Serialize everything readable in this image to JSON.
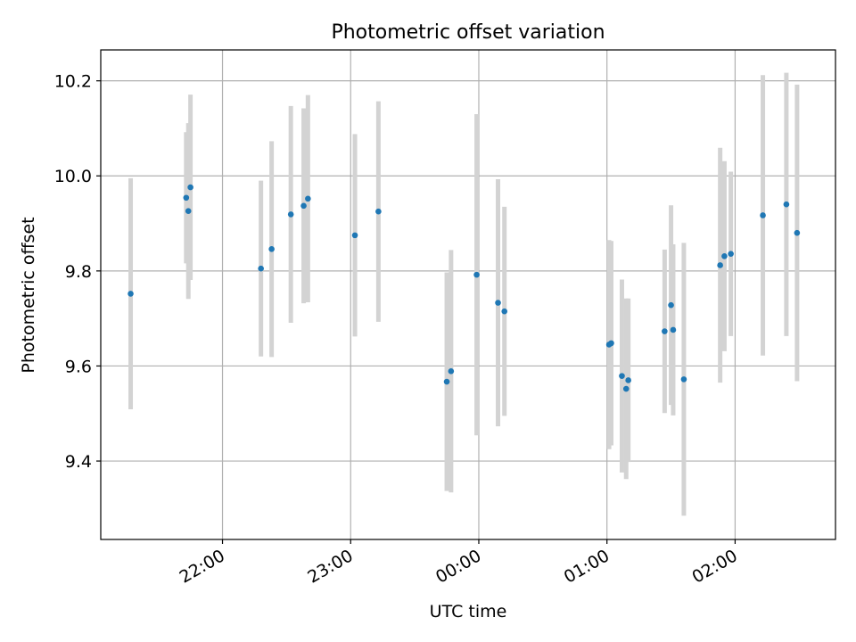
{
  "chart_data": {
    "type": "scatter",
    "title": "Photometric offset variation",
    "xlabel": "UTC time",
    "ylabel": "Photometric offset",
    "grid": true,
    "xlim": [
      "21:03",
      "02:47"
    ],
    "ylim": [
      9.235,
      10.265
    ],
    "xticks": [
      "22:00",
      "23:00",
      "00:00",
      "01:00",
      "02:00"
    ],
    "yticks": [
      9.4,
      9.6,
      9.8,
      10.0,
      10.2
    ],
    "ytick_labels": [
      "9.4",
      "9.6",
      "9.8",
      "10.0",
      "10.2"
    ],
    "point_color": "#1f77b4",
    "errorbar_color": "#d3d3d3",
    "points": [
      {
        "t": "21:17",
        "y": 9.752,
        "err": 0.243
      },
      {
        "t": "21:43",
        "y": 9.954,
        "err": 0.138
      },
      {
        "t": "21:44",
        "y": 9.926,
        "err": 0.185
      },
      {
        "t": "21:45",
        "y": 9.976,
        "err": 0.195
      },
      {
        "t": "22:18",
        "y": 9.805,
        "err": 0.185
      },
      {
        "t": "22:23",
        "y": 9.846,
        "err": 0.227
      },
      {
        "t": "22:32",
        "y": 9.919,
        "err": 0.228
      },
      {
        "t": "22:38",
        "y": 9.937,
        "err": 0.205
      },
      {
        "t": "22:40",
        "y": 9.952,
        "err": 0.218
      },
      {
        "t": "23:02",
        "y": 9.875,
        "err": 0.213
      },
      {
        "t": "23:13",
        "y": 9.925,
        "err": 0.232
      },
      {
        "t": "23:45",
        "y": 9.567,
        "err": 0.23
      },
      {
        "t": "23:47",
        "y": 9.589,
        "err": 0.255
      },
      {
        "t": "23:59",
        "y": 9.792,
        "err": 0.338
      },
      {
        "t": "00:09",
        "y": 9.733,
        "err": 0.26
      },
      {
        "t": "00:12",
        "y": 9.715,
        "err": 0.22
      },
      {
        "t": "01:01",
        "y": 9.645,
        "err": 0.22
      },
      {
        "t": "01:02",
        "y": 9.648,
        "err": 0.215
      },
      {
        "t": "01:07",
        "y": 9.579,
        "err": 0.203
      },
      {
        "t": "01:09",
        "y": 9.552,
        "err": 0.19
      },
      {
        "t": "01:10",
        "y": 9.57,
        "err": 0.172
      },
      {
        "t": "01:27",
        "y": 9.673,
        "err": 0.172
      },
      {
        "t": "01:30",
        "y": 9.728,
        "err": 0.21
      },
      {
        "t": "01:31",
        "y": 9.676,
        "err": 0.18
      },
      {
        "t": "01:36",
        "y": 9.572,
        "err": 0.287
      },
      {
        "t": "01:53",
        "y": 9.812,
        "err": 0.247
      },
      {
        "t": "01:55",
        "y": 9.831,
        "err": 0.2
      },
      {
        "t": "01:58",
        "y": 9.836,
        "err": 0.173
      },
      {
        "t": "02:13",
        "y": 9.917,
        "err": 0.295
      },
      {
        "t": "02:24",
        "y": 9.94,
        "err": 0.277
      },
      {
        "t": "02:29",
        "y": 9.88,
        "err": 0.312
      }
    ]
  }
}
